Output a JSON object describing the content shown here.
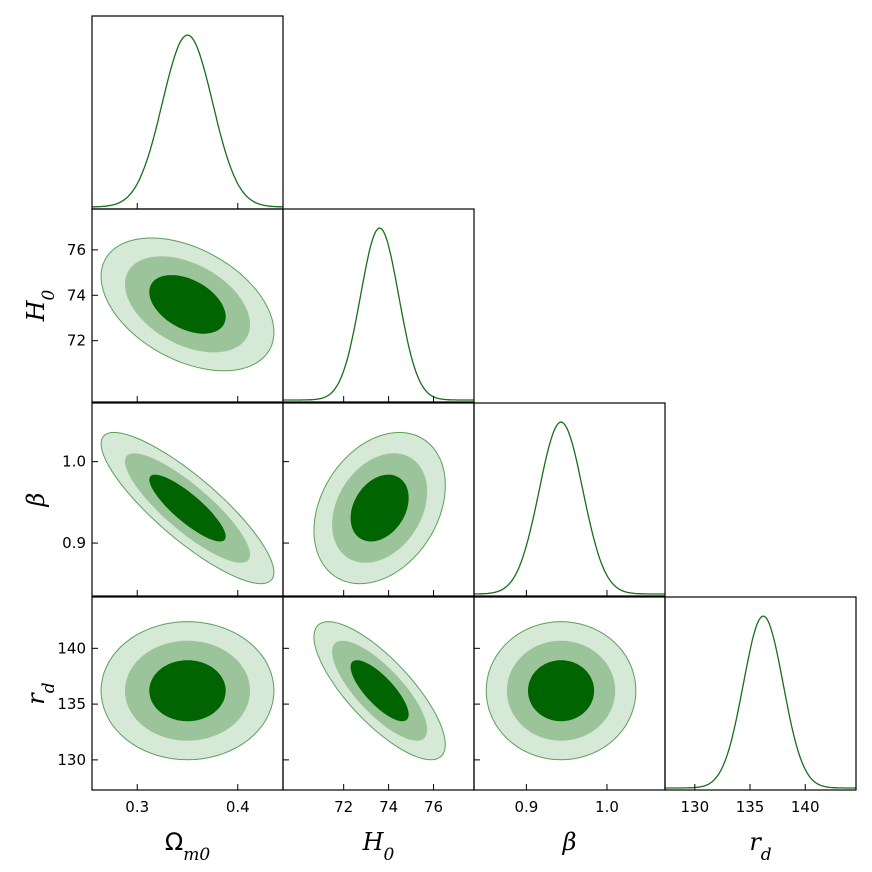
{
  "chart_data": {
    "type": "corner",
    "parameters": [
      {
        "key": "om",
        "label": "Ω",
        "sub": "m0",
        "range": [
          0.255,
          0.445
        ],
        "ticks": [
          0.3,
          0.4
        ],
        "tick_labels": [
          "0.3",
          "0.4"
        ]
      },
      {
        "key": "h0",
        "label": "H",
        "sub": "0",
        "range": [
          69.3,
          77.8
        ],
        "ticks": [
          72,
          74,
          76
        ],
        "tick_labels": [
          "72",
          "74",
          "76"
        ]
      },
      {
        "key": "beta",
        "label": "β",
        "sub": "",
        "range": [
          0.835,
          1.072
        ],
        "ticks": [
          0.9,
          1.0
        ],
        "tick_labels": [
          "0.9",
          "1.0"
        ]
      },
      {
        "key": "rd",
        "label": "r",
        "sub": "d",
        "range": [
          127.3,
          144.6
        ],
        "ticks": [
          130,
          135,
          140
        ],
        "tick_labels": [
          "130",
          "135",
          "140"
        ]
      }
    ],
    "posteriors_1d": [
      {
        "param": "om",
        "mean": 0.35,
        "sigma": 0.025
      },
      {
        "param": "h0",
        "mean": 73.6,
        "sigma": 0.85
      },
      {
        "param": "beta",
        "mean": 0.943,
        "sigma": 0.027
      },
      {
        "param": "rd",
        "mean": 136.2,
        "sigma": 1.8
      }
    ],
    "posteriors_2d": [
      {
        "x": "om",
        "y": "h0",
        "corr": -0.42
      },
      {
        "x": "om",
        "y": "beta",
        "corr": -0.85
      },
      {
        "x": "h0",
        "y": "beta",
        "corr": 0.3
      },
      {
        "x": "om",
        "y": "rd",
        "corr": 0.0
      },
      {
        "x": "h0",
        "y": "rd",
        "corr": -0.78
      },
      {
        "x": "beta",
        "y": "rd",
        "corr": 0.0
      }
    ],
    "contour_levels_sigma": [
      1,
      2,
      3
    ],
    "colors": {
      "line": "#1a6e1a",
      "fill_1sigma": "#006400",
      "fill_2sigma": "#9bc49b",
      "fill_3sigma": "#d6e8d6",
      "edge": "#5aa05a"
    }
  }
}
